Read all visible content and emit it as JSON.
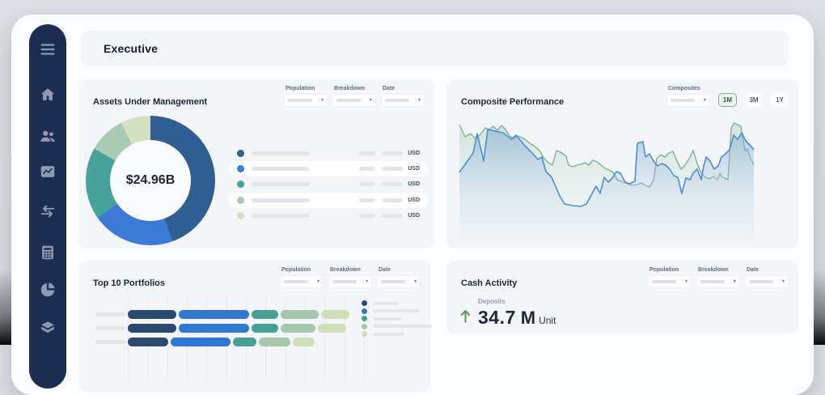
{
  "page": {
    "title": "Executive"
  },
  "sidebar": {
    "items": [
      {
        "icon": "menu-icon"
      },
      {
        "icon": "home-icon"
      },
      {
        "icon": "users-icon"
      },
      {
        "icon": "performance-chart-icon"
      },
      {
        "icon": "transfers-icon"
      },
      {
        "icon": "calculator-icon"
      },
      {
        "icon": "allocation-pie-icon"
      },
      {
        "icon": "holdings-stack-icon"
      }
    ]
  },
  "cards": {
    "aum": {
      "title": "Assets Under Management",
      "filters": [
        "Population",
        "Breakdown",
        "Date"
      ],
      "center_value": "$24.96B",
      "currency_label": "USD"
    },
    "composite": {
      "title": "Composite Performance",
      "filters": [
        "Composites"
      ],
      "range_buttons": [
        {
          "label": "1M",
          "selected": true
        },
        {
          "label": "3M",
          "selected": false
        },
        {
          "label": "1Y",
          "selected": false
        }
      ]
    },
    "top10": {
      "title": "Top 10 Portfolios",
      "filters": [
        "Population",
        "Breakdown",
        "Date"
      ]
    },
    "cash": {
      "title": "Cash Activity",
      "filters": [
        "Population",
        "Breakdown",
        "Date"
      ],
      "metric_label": "Deposits",
      "metric_value": "34.7",
      "metric_magnitude": "M",
      "metric_unit": "Unit",
      "trend": "up"
    }
  },
  "chart_data": [
    {
      "id": "aum-donut",
      "type": "pie",
      "title": "Assets Under Management",
      "center_label": "$24.96B",
      "segments": [
        {
          "name": "segment-1",
          "color": "#2e5e92",
          "percent": 44.4
        },
        {
          "name": "segment-2",
          "color": "#3b7ad6",
          "percent": 20.8
        },
        {
          "name": "segment-3",
          "color": "#47a29b",
          "percent": 18.0
        },
        {
          "name": "segment-4",
          "color": "#a9cab5",
          "percent": 9.3
        },
        {
          "name": "segment-5",
          "color": "#d4e0c0",
          "percent": 7.5
        }
      ],
      "legend": {
        "rows": 5,
        "labels_masked": true,
        "currency": "USD",
        "value_placeholder_widths": [
          20,
          26
        ]
      }
    },
    {
      "id": "composite-performance",
      "type": "area",
      "title": "Composite Performance",
      "selected_range": "1M",
      "x_range": [
        0,
        375
      ],
      "y_range": [
        0,
        160
      ],
      "series": [
        {
          "name": "composite-green",
          "color": "#7fb392",
          "fill_top": "rgba(160,200,175,0.40)",
          "points": [
            [
              8,
              12
            ],
            [
              15,
              27
            ],
            [
              22,
              23
            ],
            [
              28,
              30
            ],
            [
              33,
              25
            ],
            [
              40,
              16
            ],
            [
              45,
              18
            ],
            [
              50,
              14
            ],
            [
              55,
              19
            ],
            [
              60,
              13
            ],
            [
              65,
              18
            ],
            [
              70,
              26
            ],
            [
              75,
              29
            ],
            [
              80,
              26
            ],
            [
              85,
              28
            ],
            [
              90,
              31
            ],
            [
              95,
              35
            ],
            [
              100,
              38
            ],
            [
              107,
              44
            ],
            [
              113,
              54
            ],
            [
              118,
              59
            ],
            [
              123,
              62
            ],
            [
              128,
              44
            ],
            [
              133,
              46
            ],
            [
              140,
              51
            ],
            [
              143,
              62
            ],
            [
              148,
              64
            ],
            [
              153,
              62
            ],
            [
              158,
              61
            ],
            [
              163,
              59
            ],
            [
              168,
              62
            ],
            [
              173,
              56
            ],
            [
              178,
              58
            ],
            [
              183,
              62
            ],
            [
              188,
              66
            ],
            [
              193,
              68
            ],
            [
              198,
              71
            ],
            [
              203,
              80
            ],
            [
              208,
              82
            ],
            [
              213,
              84
            ],
            [
              218,
              86
            ],
            [
              223,
              87
            ],
            [
              228,
              86
            ],
            [
              233,
              84
            ],
            [
              238,
              87
            ],
            [
              243,
              89
            ],
            [
              248,
              81
            ],
            [
              252,
              54
            ],
            [
              257,
              49
            ],
            [
              262,
              52
            ],
            [
              267,
              47
            ],
            [
              272,
              45
            ],
            [
              277,
              57
            ],
            [
              282,
              67
            ],
            [
              287,
              62
            ],
            [
              292,
              54
            ],
            [
              297,
              44
            ],
            [
              302,
              60
            ],
            [
              307,
              72
            ],
            [
              312,
              77
            ],
            [
              317,
              79
            ],
            [
              322,
              76
            ],
            [
              327,
              80
            ],
            [
              330,
              72
            ],
            [
              333,
              77
            ],
            [
              336,
              78
            ],
            [
              340,
              80
            ],
            [
              344,
              16
            ],
            [
              348,
              10
            ],
            [
              352,
              12
            ],
            [
              356,
              14
            ],
            [
              361,
              44
            ],
            [
              364,
              42
            ],
            [
              368,
              54
            ],
            [
              372,
              61
            ]
          ]
        },
        {
          "name": "composite-blue",
          "color": "#4c8fd2",
          "fill_top": "rgba(125,170,215,0.55)",
          "points": [
            [
              8,
              71
            ],
            [
              25,
              47
            ],
            [
              30,
              23
            ],
            [
              38,
              57
            ],
            [
              43,
              18
            ],
            [
              53,
              20
            ],
            [
              62,
              22
            ],
            [
              72,
              30
            ],
            [
              78,
              25
            ],
            [
              88,
              37
            ],
            [
              98,
              47
            ],
            [
              105,
              55
            ],
            [
              110,
              52
            ],
            [
              115,
              70
            ],
            [
              122,
              77
            ],
            [
              132,
              100
            ],
            [
              138,
              110
            ],
            [
              148,
              112
            ],
            [
              158,
              113
            ],
            [
              165,
              110
            ],
            [
              177,
              88
            ],
            [
              182,
              97
            ],
            [
              187,
              77
            ],
            [
              192,
              83
            ],
            [
              197,
              78
            ],
            [
              202,
              70
            ],
            [
              207,
              72
            ],
            [
              213,
              83
            ],
            [
              218,
              85
            ],
            [
              225,
              82
            ],
            [
              228,
              35
            ],
            [
              235,
              33
            ],
            [
              238,
              52
            ],
            [
              243,
              48
            ],
            [
              248,
              57
            ],
            [
              253,
              63
            ],
            [
              258,
              60
            ],
            [
              263,
              62
            ],
            [
              268,
              67
            ],
            [
              273,
              75
            ],
            [
              278,
              77
            ],
            [
              283,
              97
            ],
            [
              288,
              78
            ],
            [
              293,
              80
            ],
            [
              297,
              72
            ],
            [
              302,
              67
            ],
            [
              307,
              80
            ],
            [
              310,
              63
            ],
            [
              313,
              52
            ],
            [
              318,
              57
            ],
            [
              323,
              67
            ],
            [
              328,
              63
            ],
            [
              332,
              52
            ],
            [
              337,
              48
            ],
            [
              342,
              43
            ],
            [
              347,
              25
            ],
            [
              352,
              30
            ],
            [
              357,
              22
            ],
            [
              362,
              32
            ],
            [
              367,
              37
            ],
            [
              372,
              43
            ]
          ]
        }
      ]
    },
    {
      "id": "top10-portfolios",
      "type": "bar",
      "title": "Top 10 Portfolios",
      "orientation": "horizontal",
      "stack_colors": [
        "#2c4a70",
        "#2e78d2",
        "#46a095",
        "#a5c8ad",
        "#cfdfb9"
      ],
      "rows": [
        {
          "name": "portfolio-1",
          "segment_widths": [
            60,
            87,
            33,
            47,
            35
          ]
        },
        {
          "name": "portfolio-2",
          "segment_widths": [
            60,
            87,
            33,
            43,
            35
          ]
        },
        {
          "name": "portfolio-3",
          "segment_widths": [
            50,
            74,
            29,
            39,
            27
          ]
        }
      ],
      "legend_line_widths": [
        30,
        56,
        34,
        72,
        38
      ],
      "row_labels_masked": true,
      "gridlines": 13
    },
    {
      "id": "cash-activity",
      "type": "kpi",
      "title": "Cash Activity",
      "label": "Deposits",
      "value": 34.7,
      "magnitude": "M",
      "unit": "Unit",
      "direction": "up",
      "accent_color": "#4f9e49"
    }
  ],
  "colors": {
    "sidebar_bg": "#1c2d52",
    "sidebar_icon": "#8e9ab2",
    "card_bg": "#f3f5f8",
    "app_bg": "#fcfdfe",
    "selected_range_bg": "#e9f3ec",
    "selected_range_border": "#88ac97"
  }
}
